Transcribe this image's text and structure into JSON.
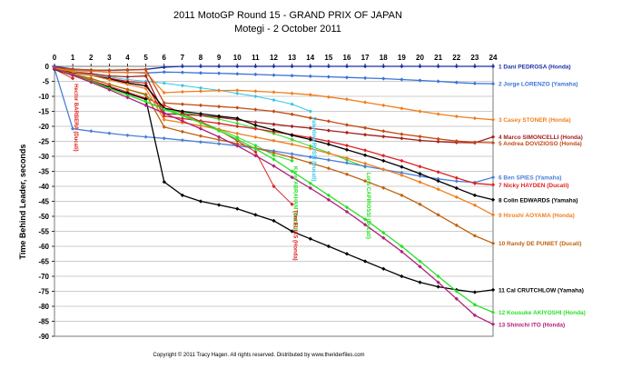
{
  "chart_data": {
    "type": "line",
    "title": "2011 MotoGP Round 15 - GRAND PRIX OF JAPAN",
    "subtitle": "Motegi - 2 October 2011",
    "xlabel": "",
    "ylabel": "Time Behind Leader, seconds",
    "xlim": [
      0,
      24
    ],
    "ylim": [
      -90,
      0
    ],
    "x_ticks": [
      0,
      1,
      2,
      3,
      4,
      5,
      6,
      7,
      8,
      9,
      10,
      11,
      12,
      13,
      14,
      15,
      16,
      17,
      18,
      19,
      20,
      21,
      22,
      23,
      24
    ],
    "y_ticks": [
      0,
      -5,
      -10,
      -15,
      -20,
      -25,
      -30,
      -35,
      -40,
      -45,
      -50,
      -55,
      -60,
      -65,
      -70,
      -75,
      -80,
      -85,
      -90
    ],
    "grid": "horizontal",
    "legend": "right",
    "copyright": "Copyright © 2011 Tracy Hagen. All rights reserved. Distributed by www.theriderfiles.com",
    "series": [
      {
        "name": "1 Dani PEDROSA (Honda)",
        "color": "#1c2fa8",
        "x": [
          0,
          1,
          2,
          3,
          4,
          5,
          6,
          7,
          8,
          9,
          10,
          11,
          12,
          13,
          14,
          15,
          16,
          17,
          18,
          19,
          20,
          21,
          22,
          23,
          24
        ],
        "values": [
          0,
          -0.9,
          -1.2,
          -1.3,
          -1.2,
          -1.0,
          -0.3,
          0,
          0,
          0,
          0,
          0,
          0,
          0,
          0,
          0,
          0,
          0,
          0,
          0,
          0,
          0,
          0,
          0,
          0
        ]
      },
      {
        "name": "2 Jorge LORENZO (Yamaha)",
        "color": "#3b73d6",
        "x": [
          0,
          1,
          2,
          3,
          4,
          5,
          6,
          7,
          8,
          9,
          10,
          11,
          12,
          13,
          14,
          15,
          16,
          17,
          18,
          19,
          20,
          21,
          22,
          23,
          24
        ],
        "values": [
          -0.5,
          -1.3,
          -1.6,
          -1.9,
          -2.0,
          -2.2,
          -1.9,
          -2.0,
          -2.2,
          -2.3,
          -2.5,
          -2.7,
          -2.9,
          -3.1,
          -3.3,
          -3.5,
          -3.7,
          -3.9,
          -4.1,
          -4.4,
          -4.7,
          -5.0,
          -5.4,
          -5.7,
          -5.8
        ]
      },
      {
        "name": "3 Casey STONER (Honda)",
        "color": "#f07f1e",
        "x": [
          0,
          1,
          2,
          3,
          4,
          5,
          6,
          7,
          8,
          9,
          10,
          11,
          12,
          13,
          14,
          15,
          16,
          17,
          18,
          19,
          20,
          21,
          22,
          23,
          24
        ],
        "values": [
          -0.5,
          -1.2,
          -1.5,
          -2.0,
          -2.1,
          -2.0,
          -8.8,
          -8.5,
          -8.3,
          -8.1,
          -8.0,
          -8.3,
          -8.6,
          -9.0,
          -9.5,
          -10.2,
          -11.0,
          -12.0,
          -13.0,
          -14.0,
          -15.0,
          -15.9,
          -16.7,
          -17.3,
          -17.8
        ]
      },
      {
        "name": "4 Marco SIMONCELLI (Honda)",
        "color": "#a51f1f",
        "x": [
          0,
          1,
          2,
          3,
          4,
          5,
          6,
          7,
          8,
          9,
          10,
          11,
          12,
          13,
          14,
          15,
          16,
          17,
          18,
          19,
          20,
          21,
          22,
          23,
          24
        ],
        "values": [
          -0.6,
          -1.8,
          -2.4,
          -3.2,
          -3.5,
          -3.2,
          -15.8,
          -16.0,
          -16.4,
          -17.0,
          -17.8,
          -18.6,
          -19.3,
          -20.0,
          -20.6,
          -21.4,
          -22.1,
          -22.8,
          -23.4,
          -24.0,
          -24.7,
          -25.1,
          -25.4,
          -25.5,
          -23.5
        ]
      },
      {
        "name": "5 Andrea DOVIZIOSO (Honda)",
        "color": "#c24a12",
        "x": [
          0,
          1,
          2,
          3,
          4,
          5,
          6,
          7,
          8,
          9,
          10,
          11,
          12,
          13,
          14,
          15,
          16,
          17,
          18,
          19,
          20,
          21,
          22,
          23,
          24
        ],
        "values": [
          -0.4,
          -1.0,
          -1.2,
          -1.3,
          -1.1,
          -1.1,
          -12.2,
          -12.6,
          -13.0,
          -13.4,
          -13.8,
          -14.4,
          -15.0,
          -16.0,
          -17.2,
          -18.3,
          -19.5,
          -20.5,
          -21.6,
          -22.6,
          -23.4,
          -24.2,
          -24.9,
          -25.3,
          -25.5
        ]
      },
      {
        "name": "6 Ben SPIES (Yamaha)",
        "color": "#4a7fd8",
        "x": [
          0,
          1,
          2,
          3,
          4,
          5,
          6,
          7,
          8,
          9,
          10,
          11,
          12,
          13,
          14,
          15,
          16,
          17,
          18,
          19,
          20,
          21,
          22,
          23,
          24
        ],
        "values": [
          -0.8,
          -20.8,
          -21.6,
          -22.3,
          -23.0,
          -23.5,
          -24.0,
          -24.6,
          -25.2,
          -25.8,
          -26.5,
          -27.3,
          -28.2,
          -29.2,
          -30.2,
          -31.2,
          -32.2,
          -33.3,
          -34.4,
          -35.5,
          -36.6,
          -37.5,
          -38.3,
          -38.7,
          -37.0
        ]
      },
      {
        "name": "7 Nicky HAYDEN (Ducati)",
        "color": "#e02222",
        "x": [
          0,
          1,
          2,
          3,
          4,
          5,
          6,
          7,
          8,
          9,
          10,
          11,
          12,
          13,
          14,
          15,
          16,
          17,
          18,
          19,
          20,
          21,
          22,
          23,
          24
        ],
        "values": [
          -0.6,
          -2.0,
          -3.0,
          -4.0,
          -5.0,
          -5.6,
          -16.6,
          -17.4,
          -18.2,
          -19.0,
          -20.0,
          -20.8,
          -21.8,
          -22.8,
          -23.8,
          -25.0,
          -26.4,
          -28.0,
          -29.8,
          -31.5,
          -33.4,
          -35.2,
          -37.2,
          -39.0,
          -39.5
        ]
      },
      {
        "name": "8 Colin EDWARDS (Yamaha)",
        "color": "#000000",
        "x": [
          0,
          1,
          2,
          3,
          4,
          5,
          6,
          7,
          8,
          9,
          10,
          11,
          12,
          13,
          14,
          15,
          16,
          17,
          18,
          19,
          20,
          21,
          22,
          23,
          24
        ],
        "values": [
          -0.7,
          -2.0,
          -3.0,
          -4.2,
          -5.5,
          -6.5,
          -14.0,
          -15.0,
          -15.8,
          -16.6,
          -17.3,
          -19.6,
          -21.2,
          -23.0,
          -24.4,
          -26.0,
          -27.8,
          -29.6,
          -31.5,
          -33.5,
          -35.8,
          -38.2,
          -40.6,
          -43.0,
          -44.5
        ]
      },
      {
        "name": "9 Hiroshi AOYAMA (Honda)",
        "color": "#f07f1e",
        "x": [
          0,
          1,
          2,
          3,
          4,
          5,
          6,
          7,
          8,
          9,
          10,
          11,
          12,
          13,
          14,
          15,
          16,
          17,
          18,
          19,
          20,
          21,
          22,
          23,
          24
        ],
        "values": [
          -0.6,
          -1.8,
          -3.0,
          -4.5,
          -6.0,
          -7.4,
          -17.8,
          -18.8,
          -19.8,
          -21.0,
          -22.4,
          -23.6,
          -24.8,
          -26.0,
          -27.4,
          -29.0,
          -30.6,
          -32.4,
          -34.3,
          -36.3,
          -38.6,
          -41.0,
          -43.6,
          -46.3,
          -49.5
        ]
      },
      {
        "name": "10 Randy DE PUNIET (Ducati)",
        "color": "#c06210",
        "x": [
          0,
          1,
          2,
          3,
          4,
          5,
          6,
          7,
          8,
          9,
          10,
          11,
          12,
          13,
          14,
          15,
          16,
          17,
          18,
          19,
          20,
          21,
          22,
          23,
          24
        ],
        "values": [
          -0.8,
          -2.5,
          -4.0,
          -6.0,
          -7.7,
          -9.3,
          -20.2,
          -21.8,
          -23.2,
          -24.5,
          -25.8,
          -27.3,
          -28.8,
          -30.4,
          -32.2,
          -34.0,
          -36.0,
          -38.2,
          -40.5,
          -43.0,
          -46.0,
          -49.5,
          -53.0,
          -56.5,
          -59.0
        ]
      },
      {
        "name": "11 Cal CRUTCHLOW (Yamaha)",
        "color": "#000000",
        "x": [
          0,
          1,
          2,
          3,
          4,
          5,
          6,
          7,
          8,
          9,
          10,
          11,
          12,
          13,
          14,
          15,
          16,
          17,
          18,
          19,
          20,
          21,
          22,
          23,
          24
        ],
        "values": [
          -1.0,
          -3.0,
          -5.0,
          -7.0,
          -9.0,
          -11.0,
          -38.5,
          -43.0,
          -45.0,
          -46.2,
          -47.5,
          -49.5,
          -51.5,
          -55.0,
          -57.5,
          -60.0,
          -62.5,
          -65.0,
          -67.5,
          -70.0,
          -72.0,
          -73.5,
          -74.5,
          -75.3,
          -74.5
        ]
      },
      {
        "name": "12 Kousuke AKIYOSHI (Honda)",
        "color": "#28e028",
        "x": [
          0,
          1,
          2,
          3,
          4,
          5,
          6,
          7,
          8,
          9,
          10,
          11,
          12,
          13,
          14,
          15,
          16,
          17,
          18,
          19,
          20,
          21,
          22,
          23,
          24
        ],
        "values": [
          -0.8,
          -3.0,
          -5.0,
          -7.3,
          -9.6,
          -11.8,
          -14.3,
          -16.5,
          -18.8,
          -21.5,
          -24.3,
          -27.5,
          -31.0,
          -35.0,
          -39.0,
          -43.0,
          -47.0,
          -51.0,
          -55.5,
          -60.0,
          -65.0,
          -70.0,
          -75.0,
          -79.5,
          -82.0
        ]
      },
      {
        "name": "13 Shinichi ITO (Honda)",
        "color": "#b0207a",
        "x": [
          0,
          1,
          2,
          3,
          4,
          5,
          6,
          7,
          8,
          9,
          10,
          11,
          12,
          13,
          14,
          15,
          16,
          17,
          18,
          19,
          20,
          21,
          22,
          23,
          24
        ],
        "values": [
          -0.8,
          -3.0,
          -5.3,
          -7.8,
          -10.4,
          -13.0,
          -15.6,
          -18.2,
          -20.8,
          -23.5,
          -26.5,
          -29.8,
          -33.2,
          -37.0,
          -40.6,
          -44.5,
          -48.5,
          -52.8,
          -57.2,
          -61.8,
          -66.8,
          -72.0,
          -77.5,
          -83.0,
          -86.0
        ]
      }
    ],
    "retired": [
      {
        "name": "Hector BARBERA (Ducati)",
        "color": "#e02222",
        "x": [
          0,
          1
        ],
        "values": [
          -1.0,
          -4.0
        ]
      },
      {
        "name": "Valentino ROSSI (Ducati)",
        "color": "#33c8e6",
        "x": [
          0,
          1,
          2,
          3,
          4,
          5,
          6,
          7,
          8,
          9,
          10,
          11,
          12,
          13,
          14
        ],
        "values": [
          -0.8,
          -1.8,
          -2.8,
          -3.6,
          -4.4,
          -5.0,
          -5.6,
          -6.4,
          -7.2,
          -8.0,
          -9.0,
          -10.0,
          -11.2,
          -12.6,
          -15.0
        ]
      },
      {
        "name": "Karel ABRAHAM (Ducati)",
        "color": "#28e028",
        "x": [
          0,
          1,
          2,
          3,
          4,
          5,
          6,
          7,
          8,
          9,
          10,
          11,
          12,
          13
        ],
        "values": [
          -1.0,
          -3.0,
          -5.2,
          -7.4,
          -9.6,
          -11.8,
          -14.0,
          -16.2,
          -18.5,
          -21.0,
          -23.6,
          -26.4,
          -29.6,
          -31.5
        ]
      },
      {
        "name": "Loris CAPIROSSI (Ducati)",
        "color": "#28e028",
        "x": [
          0,
          1,
          2,
          3,
          4,
          5,
          6,
          7,
          8,
          9,
          10,
          11,
          12,
          13,
          14,
          15,
          16,
          17
        ],
        "values": [
          -0.9,
          -2.6,
          -4.2,
          -6.0,
          -7.8,
          -9.6,
          -14.5,
          -15.4,
          -16.4,
          -17.6,
          -19.0,
          -20.6,
          -22.4,
          -24.4,
          -26.6,
          -28.8,
          -31.2,
          -33.5
        ]
      },
      {
        "name": "Toni ELIAS (Honda)",
        "color": "#e02222",
        "x": [
          0,
          1,
          2,
          3,
          4,
          5,
          6,
          7,
          8,
          9,
          10,
          11,
          12,
          13
        ],
        "values": [
          -0.9,
          -2.8,
          -4.6,
          -6.6,
          -8.6,
          -10.6,
          -13.0,
          -15.6,
          -18.4,
          -21.4,
          -24.8,
          -28.5,
          -40.0,
          -46.0
        ]
      }
    ],
    "retired_labels": [
      "Hector BARBERA (Ducati)",
      "Valentino ROSSI (Ducati)",
      "Karel ABRAHAM (Ducati)",
      "Loris CAPIROSSI (Ducati)",
      "Toni ELIAS (Honda)"
    ]
  }
}
